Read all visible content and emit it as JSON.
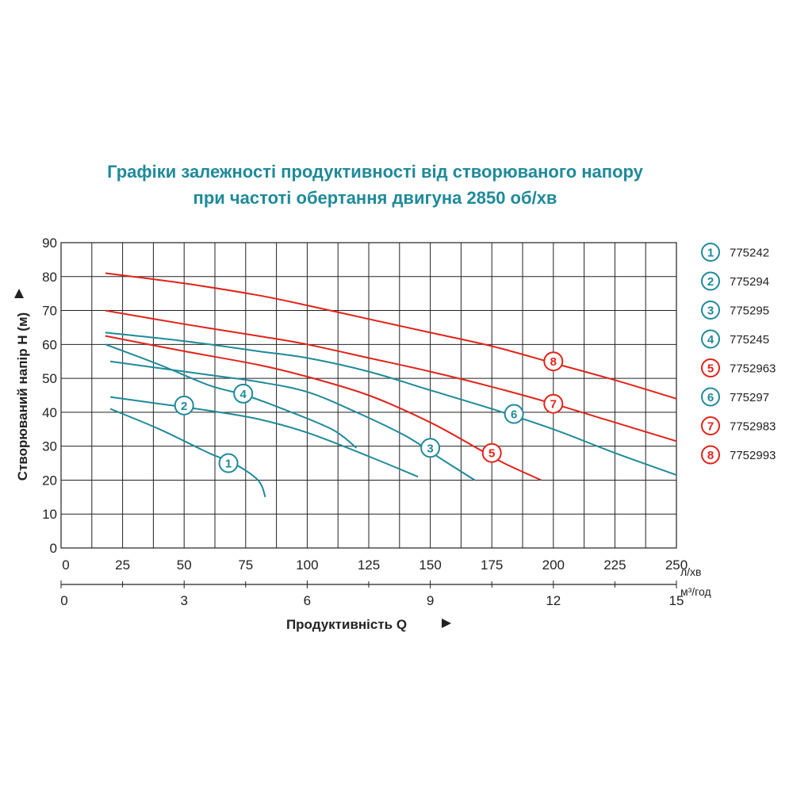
{
  "title_lines": [
    "Графіки залежності продуктивності від створюваного напору",
    "при частоті обертання двигуна 2850 об/хв"
  ],
  "colors": {
    "teal": "#1f8a9a",
    "red": "#e2231a",
    "grid": "#222222",
    "text": "#222222"
  },
  "chart_data": {
    "type": "line",
    "title": "Графіки залежності продуктивності від створюваного напору при частоті обертання двигуна 2850 об/хв",
    "xlabel": "Продуктивність  Q",
    "ylabel": "Створюваний напір H (м)",
    "x_unit": "л/хв",
    "x2_unit": "м³/год",
    "xlim": [
      0,
      250
    ],
    "ylim": [
      0,
      90
    ],
    "x_ticks": [
      "0",
      "25",
      "50",
      "75",
      "100",
      "125",
      "150",
      "175",
      "200",
      "225",
      "250"
    ],
    "x2_ticks": [
      "0",
      "3",
      "6",
      "9",
      "12",
      "15"
    ],
    "y_ticks": [
      "0",
      "10",
      "20",
      "30",
      "40",
      "50",
      "60",
      "70",
      "80",
      "90"
    ],
    "grid": true,
    "legend_position": "right",
    "series": [
      {
        "name": "775242",
        "label": "1",
        "color": "teal",
        "points": [
          [
            20,
            41
          ],
          [
            40,
            35
          ],
          [
            60,
            28
          ],
          [
            70,
            25
          ],
          [
            80,
            20
          ],
          [
            83,
            15
          ]
        ],
        "marker": [
          68,
          25
        ]
      },
      {
        "name": "775294",
        "label": "2",
        "color": "teal",
        "points": [
          [
            20,
            44.5
          ],
          [
            40,
            42.5
          ],
          [
            60,
            40.5
          ],
          [
            80,
            38
          ],
          [
            100,
            34
          ],
          [
            125,
            27
          ],
          [
            145,
            21
          ]
        ],
        "marker": [
          50,
          42
        ]
      },
      {
        "name": "775295",
        "label": "3",
        "color": "teal",
        "points": [
          [
            20,
            55
          ],
          [
            40,
            53
          ],
          [
            60,
            51
          ],
          [
            80,
            49
          ],
          [
            100,
            46
          ],
          [
            120,
            40
          ],
          [
            140,
            33
          ],
          [
            155,
            26
          ],
          [
            168,
            20
          ]
        ],
        "marker": [
          150,
          29.5
        ]
      },
      {
        "name": "775245",
        "label": "4",
        "color": "teal",
        "points": [
          [
            18,
            60
          ],
          [
            40,
            54
          ],
          [
            60,
            48
          ],
          [
            75,
            45
          ],
          [
            90,
            41
          ],
          [
            110,
            35
          ],
          [
            120,
            29.5
          ]
        ],
        "marker": [
          74,
          45.5
        ]
      },
      {
        "name": "7752963",
        "label": "5",
        "color": "red",
        "points": [
          [
            18,
            62.5
          ],
          [
            50,
            58
          ],
          [
            80,
            54
          ],
          [
            100,
            50.5
          ],
          [
            125,
            45
          ],
          [
            150,
            37
          ],
          [
            170,
            29
          ],
          [
            180,
            25
          ],
          [
            195,
            20
          ]
        ],
        "marker": [
          175,
          28
        ]
      },
      {
        "name": "775297",
        "label": "6",
        "color": "teal",
        "points": [
          [
            18,
            63.5
          ],
          [
            50,
            61
          ],
          [
            80,
            58
          ],
          [
            100,
            56
          ],
          [
            125,
            52
          ],
          [
            150,
            46.5
          ],
          [
            175,
            41
          ],
          [
            200,
            35
          ],
          [
            225,
            28
          ],
          [
            250,
            21.5
          ]
        ],
        "marker": [
          184,
          39.5
        ]
      },
      {
        "name": "7752983",
        "label": "7",
        "color": "red",
        "points": [
          [
            18,
            70
          ],
          [
            50,
            66
          ],
          [
            80,
            62.5
          ],
          [
            100,
            60
          ],
          [
            125,
            56
          ],
          [
            150,
            52
          ],
          [
            175,
            47.5
          ],
          [
            200,
            42.5
          ],
          [
            225,
            37
          ],
          [
            250,
            31.5
          ]
        ],
        "marker": [
          200,
          42.5
        ]
      },
      {
        "name": "7752993",
        "label": "8",
        "color": "red",
        "points": [
          [
            18,
            81
          ],
          [
            50,
            78
          ],
          [
            80,
            74.5
          ],
          [
            100,
            71.5
          ],
          [
            125,
            67.5
          ],
          [
            150,
            63.5
          ],
          [
            175,
            59.5
          ],
          [
            200,
            54.5
          ],
          [
            225,
            49.5
          ],
          [
            250,
            44
          ]
        ],
        "marker": [
          200,
          55
        ]
      }
    ]
  }
}
